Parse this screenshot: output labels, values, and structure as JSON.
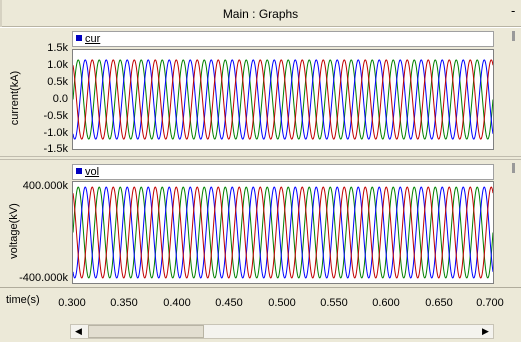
{
  "window": {
    "title": "Main : Graphs",
    "minimize_glyph": "-"
  },
  "graphs": [
    {
      "legend": {
        "label": "cur",
        "marker_color": "#0000c0"
      },
      "ylabel": "current(kA)",
      "yticks": [
        "1.5k",
        "1.0k",
        "0.5k",
        "0.0",
        "-0.5k",
        "-1.0k",
        "-1.5k"
      ]
    },
    {
      "legend": {
        "label": "vol",
        "marker_color": "#0000c0"
      },
      "ylabel": "voltage(kV)",
      "yticks": [
        "400.000k",
        "-400.000k"
      ]
    }
  ],
  "xaxis": {
    "label": "time(s)",
    "ticks": [
      "0.300",
      "0.350",
      "0.400",
      "0.450",
      "0.500",
      "0.550",
      "0.600",
      "0.650",
      "0.700"
    ]
  },
  "scrollbar": {
    "left_arrow": "◀",
    "right_arrow": "▶"
  },
  "phase_colors": [
    "#008000",
    "#0000ff",
    "#c00000"
  ],
  "chart_data": [
    {
      "type": "line",
      "title": "",
      "xlabel": "time(s)",
      "ylabel": "current(kA)",
      "xlim": [
        0.3,
        0.7
      ],
      "ylim": [
        -1.5,
        1.5
      ],
      "grid": false,
      "waveform": "three-phase sine",
      "frequency_hz": 50,
      "amplitude": 1.2,
      "series": [
        {
          "name": "cur",
          "phase_deg": 0,
          "color": "#008000"
        },
        {
          "name": "cur",
          "phase_deg": -120,
          "color": "#0000ff"
        },
        {
          "name": "cur",
          "phase_deg": 120,
          "color": "#c00000"
        }
      ]
    },
    {
      "type": "line",
      "title": "",
      "xlabel": "time(s)",
      "ylabel": "voltage(kV)",
      "xlim": [
        0.3,
        0.7
      ],
      "ylim": [
        -400,
        400
      ],
      "grid": false,
      "waveform": "three-phase sine",
      "frequency_hz": 50,
      "amplitude": 360,
      "series": [
        {
          "name": "vol",
          "phase_deg": 0,
          "color": "#008000"
        },
        {
          "name": "vol",
          "phase_deg": -120,
          "color": "#0000ff"
        },
        {
          "name": "vol",
          "phase_deg": 120,
          "color": "#c00000"
        }
      ]
    }
  ]
}
